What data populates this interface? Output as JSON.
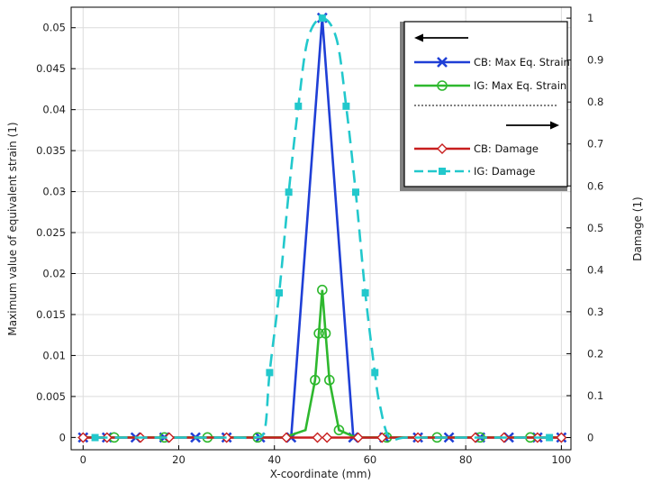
{
  "chart_data": {
    "type": "line",
    "xlabel": "X-coordinate (mm)",
    "ylabel_left": "Maximum value of equivalent strain (1)",
    "ylabel_right": "Damage (1)",
    "xlim": [
      -2.5,
      102
    ],
    "ylim_left": [
      -0.0015,
      0.0525
    ],
    "ylim_right": [
      -0.029,
      1.026
    ],
    "x_ticks": [
      0,
      20,
      40,
      60,
      80,
      100
    ],
    "y_left_ticks": [
      0,
      0.005,
      0.01,
      0.015,
      0.02,
      0.025,
      0.03,
      0.035,
      0.04,
      0.045,
      0.05
    ],
    "y_right_ticks": [
      0,
      0.1,
      0.2,
      0.3,
      0.4,
      0.5,
      0.6,
      0.7,
      0.8,
      0.9,
      1
    ],
    "grid": true,
    "legend_position": "top-right",
    "legend": {
      "left_axis_entries": [
        "CB: Max Eq. Strain",
        "IG: Max Eq. Strain"
      ],
      "right_axis_entries": [
        "CB: Damage",
        "IG: Damage"
      ]
    },
    "series": [
      {
        "name": "CB: Max Eq. Strain",
        "axis": "left",
        "color": "#1f3fd6",
        "marker": "x",
        "x": [
          0,
          5,
          11,
          17,
          23.5,
          30,
          37,
          43.5,
          50,
          56.5,
          63,
          70,
          76.5,
          83,
          89,
          95,
          100
        ],
        "y": [
          0,
          0,
          0,
          0,
          0,
          0,
          0,
          0,
          0.0512,
          0,
          0,
          0,
          0,
          0,
          0,
          0,
          0
        ]
      },
      {
        "name": "IG: Max Eq. Strain",
        "axis": "left",
        "color": "#2eb82e",
        "marker": "circle",
        "x": [
          0,
          6.5,
          17,
          26,
          36.5,
          42,
          46.5,
          48.5,
          49.3,
          50,
          50.7,
          51.5,
          53.5,
          57,
          63.5,
          74,
          83,
          93.5,
          100
        ],
        "y": [
          0,
          0,
          0,
          0,
          0,
          0,
          0.0009,
          0.007,
          0.0127,
          0.018,
          0.0127,
          0.007,
          0.0009,
          0,
          0,
          0,
          0,
          0,
          0
        ],
        "marker_x": [
          6.5,
          17,
          26,
          36.5,
          48.5,
          49.3,
          50,
          50.7,
          51.5,
          53.5,
          63.5,
          74,
          83,
          93.5
        ]
      },
      {
        "name": "CB: Damage",
        "axis": "right",
        "color": "#c81e1e",
        "marker": "diamond",
        "x": [
          0,
          5,
          12,
          18,
          30,
          42.5,
          49,
          51,
          57.5,
          62.5,
          70,
          82,
          88,
          95,
          100
        ],
        "y": [
          0,
          0,
          0,
          0,
          0,
          0,
          0,
          0,
          0,
          0,
          0,
          0,
          0,
          0,
          0
        ],
        "gap_between": [
          49,
          51
        ]
      },
      {
        "name": "IG: Damage",
        "axis": "right",
        "color": "#22c8cc",
        "marker": "square",
        "x": [
          2.5,
          12.5,
          22.5,
          32.5,
          36,
          38,
          39,
          41,
          43,
          45,
          47,
          50,
          53,
          55,
          57,
          59,
          61,
          62,
          64,
          67.5,
          77.5,
          87.5,
          97.5
        ],
        "y": [
          0,
          0,
          0,
          0,
          0,
          0.02,
          0.155,
          0.345,
          0.585,
          0.79,
          0.95,
          1.0,
          0.95,
          0.79,
          0.585,
          0.345,
          0.155,
          0.08,
          0,
          0,
          0,
          0,
          0
        ],
        "marker_x": [
          2.5,
          39,
          41,
          43,
          45,
          50,
          55,
          57,
          59,
          61,
          97.5
        ],
        "dashed": true
      }
    ]
  },
  "colors": {
    "grid": "#dcdcdc",
    "axis": "#000000",
    "legend_shadow": "#808080"
  }
}
